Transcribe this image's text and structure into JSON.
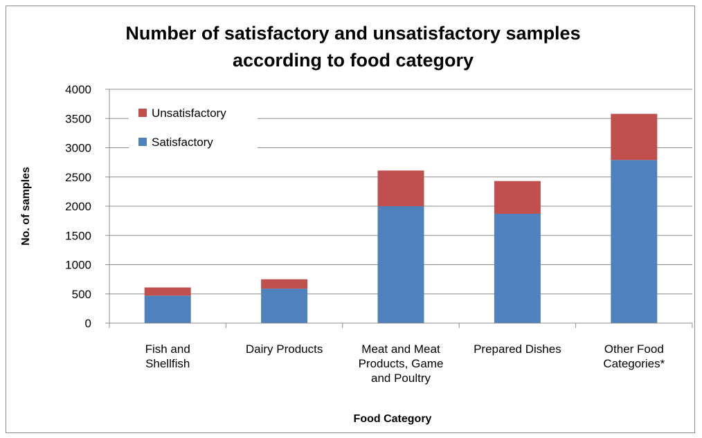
{
  "chart_data": {
    "type": "bar",
    "stacked": true,
    "title_lines": [
      "Number of satisfactory and unsatisfactory  samples",
      "according to food category"
    ],
    "xlabel": "Food Category",
    "ylabel": "No. of samples",
    "ylim": [
      0,
      4000
    ],
    "y_ticks": [
      "0",
      "500",
      "1000",
      "1500",
      "2000",
      "2500",
      "3000",
      "3500",
      "4000"
    ],
    "grid": true,
    "legend_position": "top-left",
    "categories": [
      [
        "Fish and",
        "Shellfish"
      ],
      [
        "Dairy Products"
      ],
      [
        "Meat and Meat",
        "Products, Game",
        "and Poultry"
      ],
      [
        "Prepared Dishes"
      ],
      [
        "Other Food",
        "Categories*"
      ]
    ],
    "series": [
      {
        "name": "Satisfactory",
        "color": "#4f81bd",
        "values": [
          470,
          590,
          2000,
          1870,
          2790
        ]
      },
      {
        "name": "Unsatisfactory",
        "color": "#c0504d",
        "values": [
          140,
          160,
          610,
          560,
          790
        ]
      }
    ],
    "legend_order": [
      "Unsatisfactory",
      "Satisfactory"
    ]
  }
}
